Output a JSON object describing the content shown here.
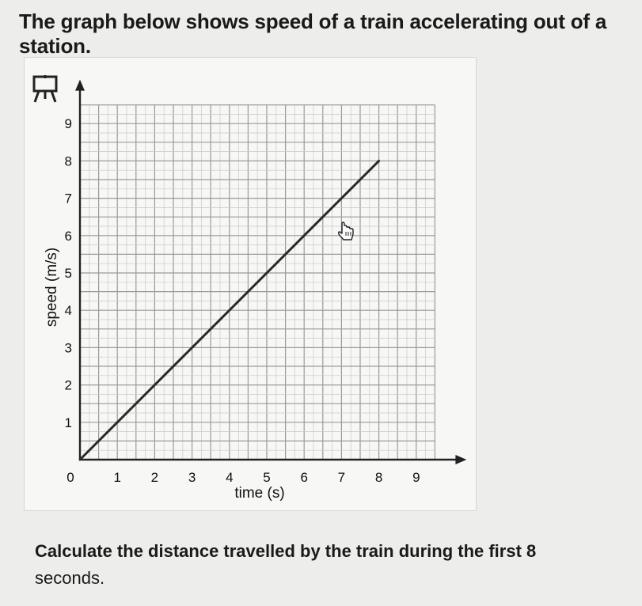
{
  "question": {
    "title": "The graph below shows speed of a train accelerating out of a station.",
    "prompt_line1": "Calculate the distance travelled by the train during the first 8",
    "prompt_line2": "seconds."
  },
  "colors": {
    "grid_minor": "#c9c9c6",
    "grid_major": "#9a9a97",
    "line": "#2a2a2a",
    "axis": "#222222"
  },
  "icons": [
    "easel-icon",
    "hand-pointer-icon"
  ],
  "chart_data": {
    "type": "line",
    "title": "",
    "xlabel": "time (s)",
    "ylabel": "speed (m/s)",
    "xlim": [
      0,
      9.5
    ],
    "ylim": [
      0,
      9.5
    ],
    "x_ticks": [
      "0",
      "1",
      "2",
      "3",
      "4",
      "5",
      "6",
      "7",
      "8",
      "9"
    ],
    "y_ticks": [
      "1",
      "2",
      "3",
      "4",
      "5",
      "6",
      "7",
      "8",
      "9"
    ],
    "grid": true,
    "minor_grid_step": 0.25,
    "series": [
      {
        "x": [
          0,
          8
        ],
        "y": [
          0,
          8
        ]
      }
    ]
  }
}
